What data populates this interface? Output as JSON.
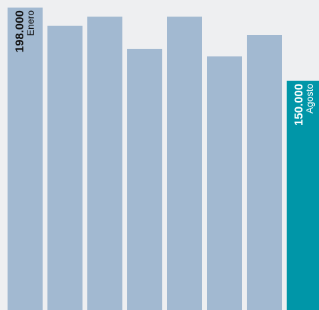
{
  "chart_data": {
    "type": "bar",
    "orientation": "vertical",
    "categories": [
      "Enero",
      "",
      "",
      "",
      "",
      "",
      "",
      "Agosto"
    ],
    "values": [
      198000,
      186000,
      192000,
      171000,
      192000,
      166000,
      180000,
      150000
    ],
    "value_labels": [
      "198.000",
      "",
      "",
      "",
      "",
      "",
      "",
      "150.000"
    ],
    "highlight_index": 7,
    "ylim": [
      0,
      198000
    ],
    "title": "",
    "xlabel": "",
    "ylabel": "",
    "grid": false,
    "legend": "none",
    "colors": {
      "background": "#eeeff1",
      "bar": "#a2b9d1",
      "highlight": "#0096a8",
      "label_dark": "#111111",
      "label_light": "#ffffff"
    }
  }
}
